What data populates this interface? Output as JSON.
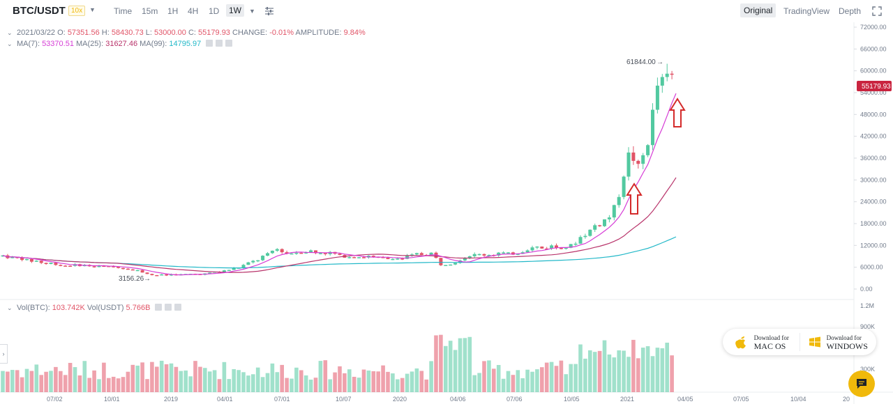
{
  "header": {
    "pair": "BTC/USDT",
    "leverage": "10x",
    "intervals": [
      "Time",
      "15m",
      "1H",
      "4H",
      "1D",
      "1W"
    ],
    "active_interval": "1W",
    "views": [
      "Original",
      "TradingView",
      "Depth"
    ],
    "active_view": "Original"
  },
  "ohlc": {
    "date": "2021/03/22",
    "open_label": "O:",
    "open": "57351.56",
    "high_label": "H:",
    "high": "58430.73",
    "low_label": "L:",
    "low": "53000.00",
    "close_label": "C:",
    "close": "55179.93",
    "change_label": "CHANGE:",
    "change": "-0.01%",
    "amplitude_label": "AMPLITUDE:",
    "amplitude": "9.84%"
  },
  "ma": {
    "ma7_label": "MA(7):",
    "ma7": "53370.51",
    "ma25_label": "MA(25):",
    "ma25": "31627.46",
    "ma99_label": "MA(99):",
    "ma99": "14795.97"
  },
  "volume": {
    "btc_label": "Vol(BTC):",
    "btc": "103.742K",
    "usdt_label": "Vol(USDT)",
    "usdt": "5.766B"
  },
  "price_axis": [
    "72000.00",
    "66000.00",
    "60000.00",
    "54000.00",
    "48000.00",
    "42000.00",
    "36000.00",
    "30000.00",
    "24000.00",
    "18000.00",
    "12000.00",
    "6000.00",
    "0.00"
  ],
  "volume_axis": [
    "1.2M",
    "900K",
    "300K"
  ],
  "time_axis": [
    "07/02",
    "10/01",
    "2019",
    "04/01",
    "07/01",
    "10/07",
    "2020",
    "04/06",
    "07/06",
    "10/05",
    "2021",
    "04/05",
    "07/05",
    "10/04",
    "20"
  ],
  "current_price": "55179.93",
  "annotations": {
    "high": "61844.00",
    "low": "3156.26"
  },
  "download": {
    "mac_line1": "Download for",
    "mac_line2": "MAC OS",
    "win_line1": "Download for",
    "win_line2": "WINDOWS"
  },
  "colors": {
    "up": "#52c9a0",
    "down": "#e15467",
    "ma7": "#d63cd6",
    "ma25": "#b8336a",
    "ma99": "#22b8c8",
    "accent": "#f0b90b"
  },
  "chart_data": {
    "type": "candlestick",
    "series": [
      {
        "name": "MA(7)",
        "value": 53370.51
      },
      {
        "name": "MA(25)",
        "value": 31627.46
      },
      {
        "name": "MA(99)",
        "value": 14795.97
      }
    ],
    "last_candle": {
      "date": "2021/03/22",
      "open": 57351.56,
      "high": 58430.73,
      "low": 53000.0,
      "close": 55179.93
    },
    "ylim": [
      0,
      72000
    ]
  }
}
